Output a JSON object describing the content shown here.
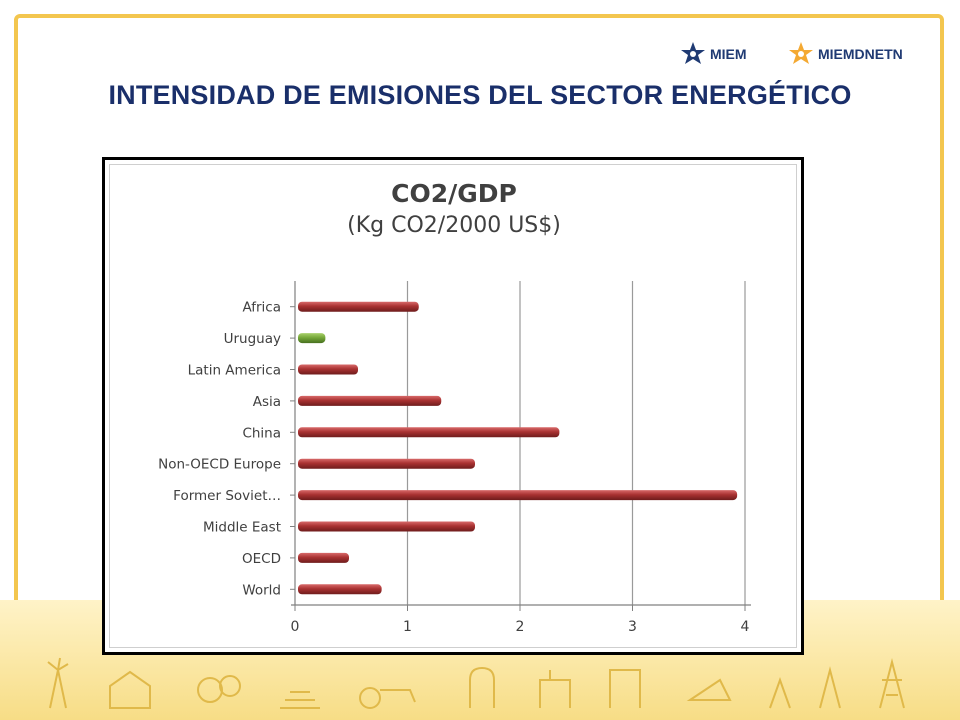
{
  "slide": {
    "title": "INTENSIDAD DE EMISIONES DEL SECTOR ENERGÉTICO"
  },
  "logos": [
    {
      "name": "MIEM",
      "color": "#1f3a73"
    },
    {
      "name": "MIEMDNETN",
      "color": "#1f3a73",
      "accent": "#f3a01c"
    }
  ],
  "colors": {
    "frame": "#f3c64f",
    "title": "#1a2f6a",
    "bar_default": "#a93232",
    "bar_highlight": "#76a83a"
  },
  "chart_data": {
    "type": "bar",
    "orientation": "horizontal",
    "title": "CO2/GDP",
    "subtitle": "(Kg CO2/2000 US$)",
    "categories": [
      "Africa",
      "Uruguay",
      "Latin America",
      "Asia",
      "China",
      "Non-OECD Europe",
      "Former Soviet…",
      "Middle East",
      "OECD",
      "World"
    ],
    "values": [
      1.1,
      0.27,
      0.56,
      1.3,
      2.35,
      1.6,
      3.93,
      1.6,
      0.48,
      0.77
    ],
    "highlight": "Uruguay",
    "xlim": [
      0,
      4
    ],
    "xticks": [
      "0",
      "1",
      "2",
      "3",
      "4"
    ],
    "grid": "vertical",
    "xlabel": "",
    "ylabel": ""
  }
}
